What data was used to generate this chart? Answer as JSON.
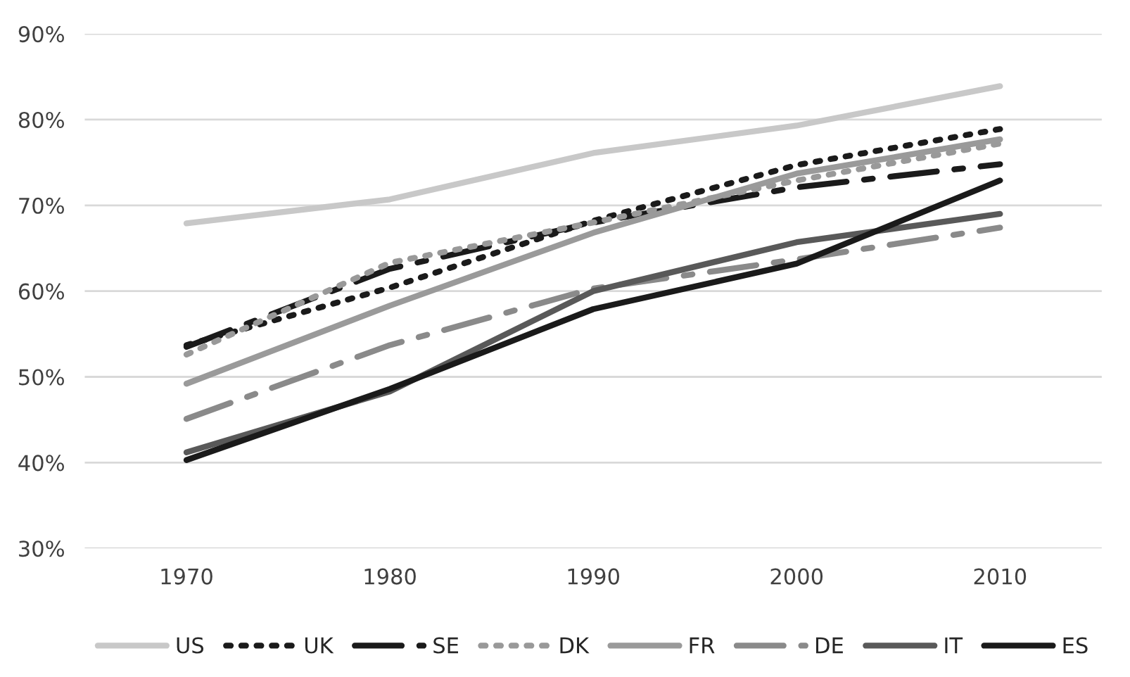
{
  "chart_data": {
    "type": "line",
    "categories": [
      "1970",
      "1980",
      "1990",
      "2000",
      "2010"
    ],
    "ylim": [
      30,
      90
    ],
    "yticks": [
      {
        "value": 30,
        "label": "30%"
      },
      {
        "value": 40,
        "label": "40%"
      },
      {
        "value": 50,
        "label": "50%"
      },
      {
        "value": 60,
        "label": "60%"
      },
      {
        "value": 70,
        "label": "70%"
      },
      {
        "value": 80,
        "label": "80%"
      },
      {
        "value": 90,
        "label": "90%"
      }
    ],
    "grid": "y",
    "legend": "bottom",
    "marker": "none",
    "series": [
      {
        "name": "US",
        "color": "#c8c8c8",
        "line_style": "solid",
        "values": [
          67.9,
          70.7,
          76.1,
          79.3,
          83.9
        ]
      },
      {
        "name": "UK",
        "color": "#1a1a1a",
        "line_style": "dotted",
        "values": [
          53.7,
          60.4,
          68.2,
          74.7,
          78.9
        ]
      },
      {
        "name": "SE",
        "color": "#1a1a1a",
        "line_style": "dashed",
        "values": [
          53.5,
          62.6,
          68.0,
          72.1,
          74.8
        ]
      },
      {
        "name": "DK",
        "color": "#999999",
        "line_style": "dotted",
        "values": [
          52.6,
          63.3,
          68.0,
          72.9,
          77.2
        ]
      },
      {
        "name": "FR",
        "color": "#9a9a9a",
        "line_style": "solid",
        "values": [
          49.2,
          58.3,
          66.8,
          73.7,
          77.7
        ]
      },
      {
        "name": "DE",
        "color": "#8a8a8a",
        "line_style": "dashed",
        "values": [
          45.1,
          53.7,
          60.3,
          63.7,
          67.4
        ]
      },
      {
        "name": "IT",
        "color": "#595959",
        "line_style": "solid",
        "values": [
          41.2,
          48.3,
          60.0,
          65.7,
          69.0
        ]
      },
      {
        "name": "ES",
        "color": "#1a1a1a",
        "line_style": "solid",
        "values": [
          40.3,
          48.6,
          57.9,
          63.2,
          72.9
        ]
      }
    ]
  }
}
